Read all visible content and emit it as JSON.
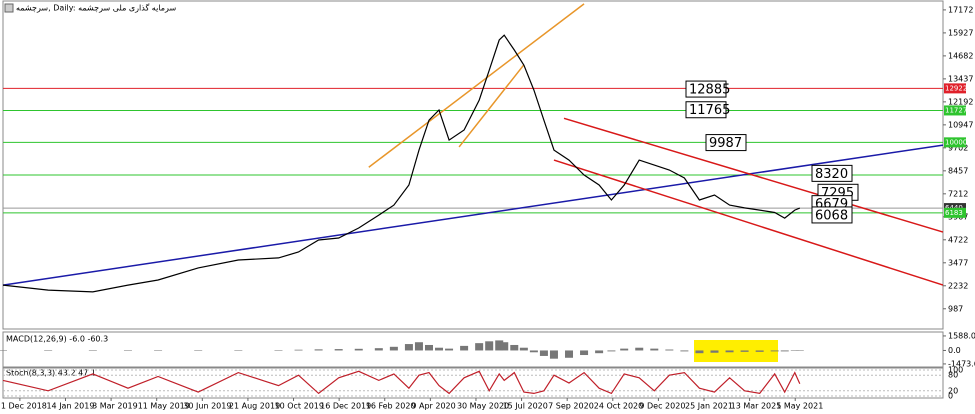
{
  "chart_data": {
    "type": "line",
    "title": "سرچشمه, Daily: سرمایه گذاری ملی سرچشمه",
    "xlim": [
      -0.37,
      20.24
    ],
    "xticks": [
      {
        "value": 0,
        "label": "1 Dec 2018"
      },
      {
        "value": 1,
        "label": "14 Jan 2019"
      },
      {
        "value": 2,
        "label": "3 Mar 2019"
      },
      {
        "value": 3,
        "label": "11 May 2019"
      },
      {
        "value": 4,
        "label": "30 Jun 2019"
      },
      {
        "value": 5,
        "label": "21 Aug 2019"
      },
      {
        "value": 6,
        "label": "10 Oct 2019"
      },
      {
        "value": 7,
        "label": "16 Dec 2019"
      },
      {
        "value": 8,
        "label": "16 Feb 2020"
      },
      {
        "value": 9,
        "label": "9 Apr 2020"
      },
      {
        "value": 10,
        "label": "30 May 2020"
      },
      {
        "value": 11,
        "label": "15 Jul 2020"
      },
      {
        "value": 12,
        "label": "7 Sep 2020"
      },
      {
        "value": 13,
        "label": "24 Oct 2020"
      },
      {
        "value": 14,
        "label": "9 Dec 2020"
      },
      {
        "value": 15,
        "label": "25 Jan 2021"
      },
      {
        "value": 16,
        "label": "13 Mar 2021"
      },
      {
        "value": 17,
        "label": "5 May 2021"
      }
    ],
    "ylim": [
      0,
      17600
    ],
    "yticks": [
      17172,
      15927,
      14682,
      13437,
      12192,
      10947,
      9702,
      8457,
      7212,
      5967,
      4722,
      3477,
      2232,
      987
    ],
    "x": [
      -0.37,
      0.62,
      1.6,
      2.37,
      3.03,
      3.91,
      4.79,
      5.67,
      6.11,
      6.55,
      6.99,
      7.43,
      7.87,
      8.2,
      8.53,
      8.75,
      8.97,
      9.19,
      9.41,
      9.74,
      10.07,
      10.29,
      10.51,
      10.62,
      10.84,
      11.05,
      11.27,
      11.49,
      11.71,
      12.04,
      12.37,
      12.7,
      12.97,
      13.25,
      13.58,
      13.91,
      14.24,
      14.57,
      14.9,
      15.23,
      15.56,
      15.89,
      16.22,
      16.55,
      16.77,
      16.99,
      17.1
    ],
    "series": [
      {
        "name": "Price",
        "color": "#000000",
        "values": [
          2270,
          2000,
          1900,
          2270,
          2545,
          3200,
          3630,
          3740,
          4060,
          4710,
          4820,
          5360,
          6060,
          6600,
          7690,
          9580,
          11200,
          11750,
          10120,
          10670,
          12290,
          13900,
          15540,
          15800,
          15000,
          14180,
          12830,
          11200,
          9580,
          9040,
          8230,
          7690,
          6880,
          7690,
          9040,
          8770,
          8500,
          8070,
          6880,
          7150,
          6600,
          6450,
          6330,
          6200,
          5900,
          6330,
          6440
        ]
      }
    ],
    "hlines": [
      {
        "value": 12922,
        "color": "#e0202a"
      },
      {
        "value": 11727,
        "color": "#2ec42e"
      },
      {
        "value": 10000,
        "color": "#2ec42e"
      },
      {
        "value": 8230,
        "color": "#2ec42e"
      },
      {
        "value": 6440,
        "color": "#999999"
      },
      {
        "value": 6183,
        "color": "#2ec42e"
      }
    ],
    "price_tags": [
      {
        "value": 12922,
        "color": "#e0202a"
      },
      {
        "value": 11727,
        "color": "#2ec42e"
      },
      {
        "value": 10000,
        "color": "#2ec42e"
      },
      {
        "value": 6440,
        "color": "#333333"
      },
      {
        "value": 6183,
        "color": "#2ec42e"
      }
    ],
    "trendlines": [
      {
        "color": "#1a1aa8",
        "x": [
          -0.37,
          20.24
        ],
        "y": [
          2270,
          9850
        ]
      },
      {
        "color": "#d81818",
        "x": [
          11.93,
          20.24
        ],
        "y": [
          11300,
          5140
        ]
      },
      {
        "color": "#d81818",
        "x": [
          11.71,
          20.24
        ],
        "y": [
          9040,
          2270
        ]
      },
      {
        "color": "#e8962a",
        "x": [
          7.65,
          12.37
        ],
        "y": [
          8650,
          17500
        ]
      },
      {
        "color": "#e8962a",
        "x": [
          9.63,
          11.05
        ],
        "y": [
          9750,
          14200
        ]
      }
    ],
    "annotations": [
      12885,
      11765,
      9987,
      8320,
      7295,
      6679,
      6068
    ],
    "macd": {
      "label": "MACD(12,26,9) -6.0 -60.3",
      "ylim": [
        -1700,
        1800
      ],
      "yticks": [
        {
          "value": 1588,
          "label": "1588.0"
        },
        {
          "value": 0,
          "label": "0.0"
        },
        {
          "value": -1473.6,
          "label": "-1473.6"
        }
      ],
      "values": [
        0,
        10,
        15,
        10,
        30,
        40,
        50,
        40,
        80,
        120,
        150,
        180,
        250,
        400,
        700,
        900,
        600,
        300,
        200,
        500,
        800,
        1000,
        1100,
        900,
        600,
        300,
        -200,
        -600,
        -900,
        -800,
        -500,
        -300,
        -100,
        200,
        300,
        200,
        100,
        -100,
        -300,
        -250,
        -200,
        -150,
        -150,
        -100,
        -100,
        -50,
        -6
      ]
    },
    "stoch": {
      "label": "Stoch(8,3,3) 43.2 47.1",
      "ylim": [
        0,
        100
      ],
      "yticks": [
        100,
        80,
        20,
        0
      ],
      "values": [
        60,
        20,
        85,
        30,
        75,
        15,
        90,
        40,
        80,
        10,
        70,
        95,
        60,
        85,
        30,
        80,
        90,
        40,
        10,
        70,
        95,
        20,
        85,
        60,
        90,
        15,
        10,
        20,
        80,
        50,
        90,
        30,
        10,
        85,
        70,
        20,
        80,
        90,
        30,
        15,
        70,
        20,
        10,
        85,
        15,
        90,
        47.1
      ]
    }
  }
}
